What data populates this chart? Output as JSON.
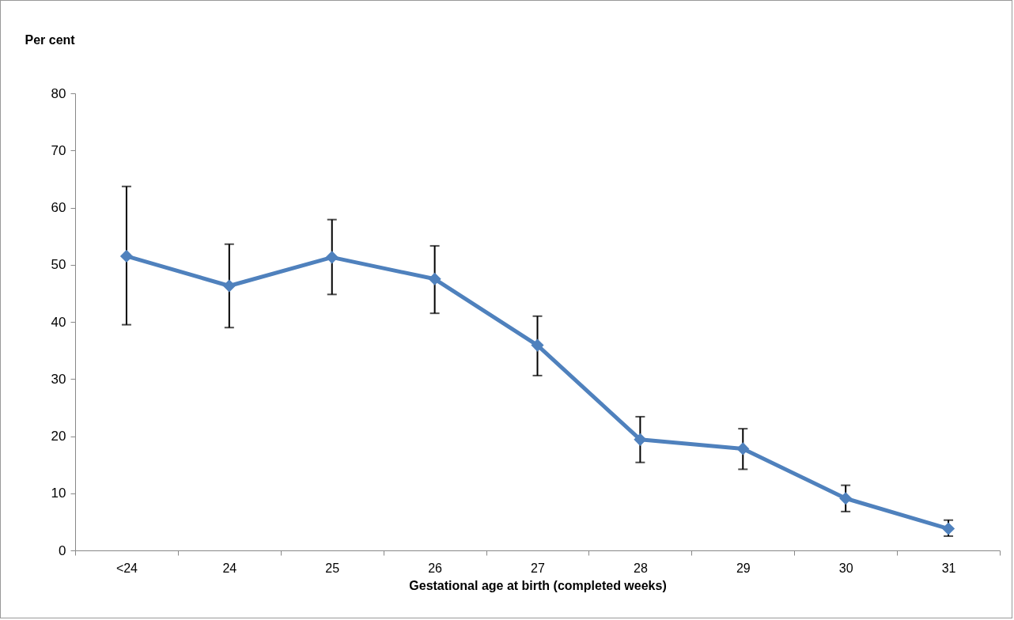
{
  "chart_data": {
    "type": "line",
    "xlabel": "Gestational  age at birth (completed weeks)",
    "ylabel": "Per cent",
    "categories": [
      "<24",
      "24",
      "25",
      "26",
      "27",
      "28",
      "29",
      "30",
      "31"
    ],
    "series": [
      {
        "color": "#4f81bd",
        "values": [
          51.5,
          46.3,
          51.3,
          47.5,
          35.9,
          19.4,
          17.8,
          9.1,
          3.8
        ],
        "errors": [
          [
            39.5,
            63.7
          ],
          [
            39.0,
            53.6
          ],
          [
            44.8,
            57.9
          ],
          [
            41.5,
            53.3
          ],
          [
            30.6,
            41.0
          ],
          [
            15.4,
            23.4
          ],
          [
            14.2,
            21.3
          ],
          [
            6.8,
            11.4
          ],
          [
            2.5,
            5.3
          ]
        ]
      }
    ],
    "ylim": [
      0,
      80
    ],
    "yticks": [
      0,
      10,
      20,
      30,
      40,
      50,
      60,
      70,
      80
    ],
    "grid": false,
    "marker": "diamond",
    "line_style": "solid"
  }
}
